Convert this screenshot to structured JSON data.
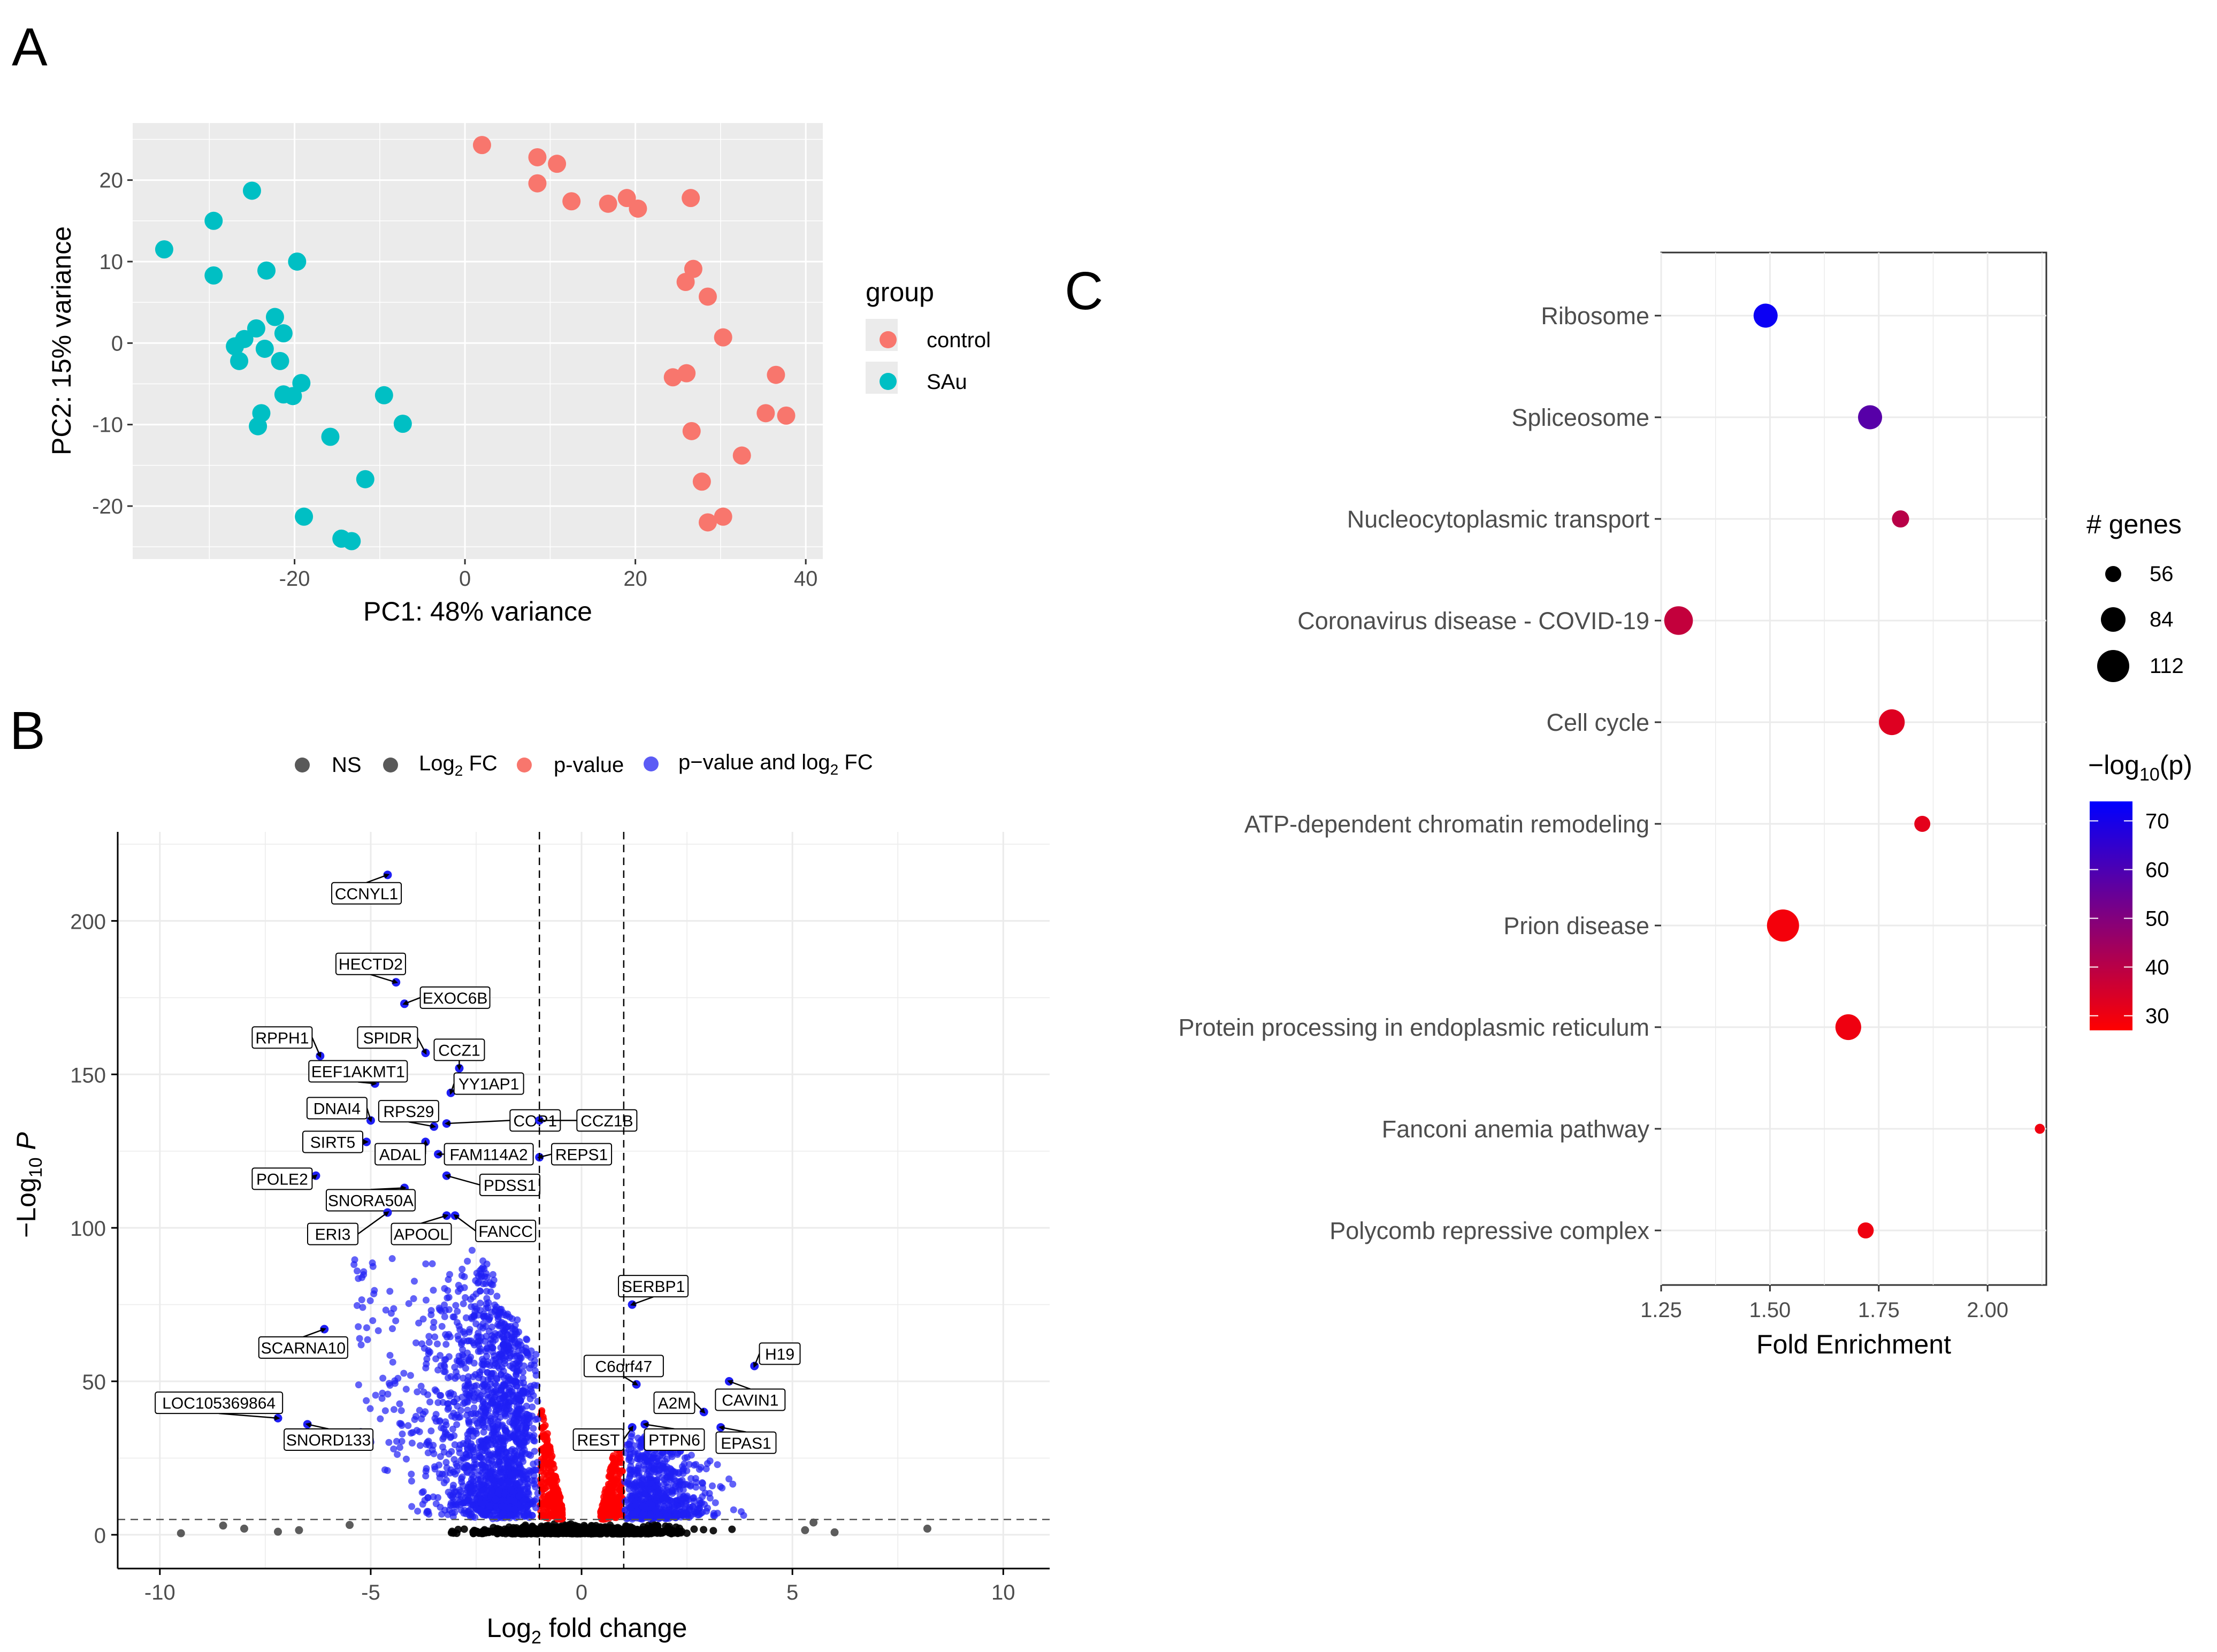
{
  "panel_letters": {
    "a": "A",
    "b": "B",
    "c": "C"
  },
  "chart_data": [
    {
      "id": "pca",
      "type": "scatter",
      "title": "",
      "xlabel": "PC1: 48% variance",
      "ylabel": "PC2: 15% variance",
      "xlim": [
        -39,
        42
      ],
      "ylim": [
        -26.5,
        27
      ],
      "xticks": [
        -20,
        0,
        20,
        40
      ],
      "xtick_labels": [
        "-20",
        "0",
        "20",
        "40"
      ],
      "yticks": [
        -20,
        -10,
        0,
        10,
        20
      ],
      "ytick_labels": [
        "-20",
        "-10",
        "0",
        "10",
        "20"
      ],
      "grid": true,
      "legend": {
        "title": "group",
        "position": "right"
      },
      "series": [
        {
          "name": "control",
          "color": "#F8766D",
          "points": [
            [
              2,
              24.3
            ],
            [
              8.5,
              22.8
            ],
            [
              10.8,
              22
            ],
            [
              8.5,
              19.6
            ],
            [
              12.5,
              17.4
            ],
            [
              16.8,
              17.1
            ],
            [
              19,
              17.8
            ],
            [
              20.3,
              16.5
            ],
            [
              26.5,
              17.8
            ],
            [
              26.8,
              9.1
            ],
            [
              25.9,
              7.5
            ],
            [
              28.5,
              5.7
            ],
            [
              30.3,
              0.7
            ],
            [
              36.5,
              -3.9
            ],
            [
              26,
              -3.7
            ],
            [
              24.4,
              -4.2
            ],
            [
              35.3,
              -8.6
            ],
            [
              37.7,
              -8.9
            ],
            [
              26.6,
              -10.8
            ],
            [
              32.5,
              -13.8
            ],
            [
              27.8,
              -17
            ],
            [
              30.3,
              -21.3
            ],
            [
              28.5,
              -22
            ]
          ]
        },
        {
          "name": "SAu",
          "color": "#00BFC4",
          "points": [
            [
              -25,
              18.7
            ],
            [
              -29.5,
              15
            ],
            [
              -35.3,
              11.5
            ],
            [
              -19.7,
              10
            ],
            [
              -23.3,
              8.9
            ],
            [
              -29.5,
              8.3
            ],
            [
              -22.3,
              3.2
            ],
            [
              -24.5,
              1.8
            ],
            [
              -21.3,
              1.2
            ],
            [
              -25.9,
              0.5
            ],
            [
              -27,
              -0.4
            ],
            [
              -23.5,
              -0.7
            ],
            [
              -26.5,
              -2.2
            ],
            [
              -21.7,
              -2.2
            ],
            [
              -19.2,
              -4.9
            ],
            [
              -21.3,
              -6.3
            ],
            [
              -20.2,
              -6.5
            ],
            [
              -9.5,
              -6.4
            ],
            [
              -7.3,
              -9.9
            ],
            [
              -23.9,
              -8.6
            ],
            [
              -24.3,
              -10.2
            ],
            [
              -15.8,
              -11.5
            ],
            [
              -11.7,
              -16.7
            ],
            [
              -18.9,
              -21.3
            ],
            [
              -14.5,
              -24
            ],
            [
              -13.3,
              -24.3
            ]
          ]
        }
      ]
    },
    {
      "id": "volcano",
      "type": "scatter",
      "title": "",
      "xlabel_main": "Log",
      "xlabel_sub": "2",
      "xlabel_rest": " fold change",
      "ylabel_main": "−Log",
      "ylabel_sub": "10",
      "ylabel_italic": " P",
      "xlim": [
        -11,
        11.1
      ],
      "ylim": [
        -11,
        229
      ],
      "xticks": [
        -10,
        -5,
        0,
        5,
        10
      ],
      "xtick_labels": [
        "-10",
        "-5",
        "0",
        "5",
        "10"
      ],
      "yticks": [
        0,
        50,
        100,
        150,
        200
      ],
      "ytick_labels": [
        "0",
        "50",
        "100",
        "150",
        "200"
      ],
      "fc_cutoff": [
        -1,
        1
      ],
      "p_cutoff": 5,
      "grid": true,
      "legend": {
        "position": "top",
        "items": [
          {
            "label": "NS",
            "color": "#595959"
          },
          {
            "label_main": "Log",
            "label_sub": "2",
            "label_rest": " FC",
            "color": "#595959"
          },
          {
            "label": "p-value",
            "color": "#F8766D"
          },
          {
            "label_main": "p−value and log",
            "label_sub": "2",
            "label_rest": " FC",
            "color": "#5B5BF5"
          }
        ]
      },
      "colors": {
        "ns": "#000000",
        "log2fc": "#404040",
        "pvalue": "#FF0000",
        "both": "#1F1FF5"
      },
      "outlier_points": [
        [
          -8.5,
          3
        ],
        [
          -8,
          2
        ],
        [
          -6.7,
          1.5
        ],
        [
          -7.2,
          1
        ],
        [
          5.5,
          4
        ],
        [
          5.3,
          1.5
        ],
        [
          8.2,
          2
        ],
        [
          -9.5,
          0.5
        ],
        [
          -5.5,
          3.2
        ],
        [
          6,
          0.8
        ]
      ],
      "labeled_genes": [
        {
          "gene": "CCNYL1",
          "x": -4.6,
          "y": 215
        },
        {
          "gene": "HECTD2",
          "x": -4.4,
          "y": 180
        },
        {
          "gene": "EXOC6B",
          "x": -4.2,
          "y": 173
        },
        {
          "gene": "RPPH1",
          "x": -6.2,
          "y": 156
        },
        {
          "gene": "SPIDR",
          "x": -3.7,
          "y": 157
        },
        {
          "gene": "CCZ1",
          "x": -2.9,
          "y": 152
        },
        {
          "gene": "EEF1AKMT1",
          "x": -4.9,
          "y": 147
        },
        {
          "gene": "YY1AP1",
          "x": -3.1,
          "y": 144
        },
        {
          "gene": "DNAI4",
          "x": -5,
          "y": 135
        },
        {
          "gene": "RPS29",
          "x": -3.5,
          "y": 133
        },
        {
          "gene": "COP1",
          "x": -3.2,
          "y": 134
        },
        {
          "gene": "CCZ1B",
          "x": -1,
          "y": 135
        },
        {
          "gene": "SIRT5",
          "x": -5.1,
          "y": 128
        },
        {
          "gene": "ADAL",
          "x": -3.7,
          "y": 128
        },
        {
          "gene": "FAM114A2",
          "x": -3.4,
          "y": 124
        },
        {
          "gene": "REPS1",
          "x": -1,
          "y": 123
        },
        {
          "gene": "POLE2",
          "x": -6.3,
          "y": 117
        },
        {
          "gene": "PDSS1",
          "x": -3.2,
          "y": 117
        },
        {
          "gene": "SNORA50A",
          "x": -4.2,
          "y": 113
        },
        {
          "gene": "ERI3",
          "x": -4.6,
          "y": 105
        },
        {
          "gene": "APOOL",
          "x": -3.2,
          "y": 104
        },
        {
          "gene": "FANCC",
          "x": -3,
          "y": 104
        },
        {
          "gene": "SERBP1",
          "x": 1.2,
          "y": 75
        },
        {
          "gene": "SCARNA10",
          "x": -6.1,
          "y": 67
        },
        {
          "gene": "H19",
          "x": 4.1,
          "y": 55
        },
        {
          "gene": "C6orf47",
          "x": 1.3,
          "y": 49
        },
        {
          "gene": "LOC105369864",
          "x": -7.2,
          "y": 38
        },
        {
          "gene": "A2M",
          "x": 2.9,
          "y": 40
        },
        {
          "gene": "CAVIN1",
          "x": 3.5,
          "y": 50
        },
        {
          "gene": "SNORD133",
          "x": -6.5,
          "y": 36
        },
        {
          "gene": "REST",
          "x": 1.2,
          "y": 35
        },
        {
          "gene": "PTPN6",
          "x": 1.5,
          "y": 36
        },
        {
          "gene": "EPAS1",
          "x": 3.3,
          "y": 35
        }
      ]
    },
    {
      "id": "enrichment",
      "type": "scatter",
      "title": "",
      "xlabel": "Fold Enrichment",
      "xlim": [
        1.25,
        2.135
      ],
      "xticks": [
        1.25,
        1.5,
        1.75,
        2.0
      ],
      "xtick_labels": [
        "1.25",
        "1.50",
        "1.75",
        "2.00"
      ],
      "grid": true,
      "categories": [
        "Ribosome",
        "Spliceosome",
        "Nucleocytoplasmic transport",
        "Coronavirus disease - COVID-19",
        "Cell cycle",
        "ATP-dependent chromatin remodeling",
        "Prion disease",
        "Protein processing in endoplasmic reticulum",
        "Fanconi anemia pathway",
        "Polycomb repressive complex"
      ],
      "fold_enrichment": [
        1.49,
        1.73,
        1.8,
        1.29,
        1.78,
        1.85,
        1.53,
        1.68,
        2.12,
        1.72
      ],
      "n_genes": [
        84,
        84,
        60,
        100,
        90,
        56,
        112,
        90,
        35,
        56
      ],
      "neg_log10_p": [
        72,
        58,
        40,
        38,
        33,
        32,
        29,
        30,
        30,
        30
      ],
      "size_legend": {
        "title": "# genes",
        "values": [
          56,
          84,
          112
        ],
        "labels": [
          "56",
          "84",
          "112"
        ]
      },
      "color_legend": {
        "title_main": "−log",
        "title_sub": "10",
        "title_rest": "(p)",
        "range": [
          27,
          74
        ],
        "ticks": [
          70,
          60,
          50,
          40,
          30
        ],
        "tick_labels": [
          "70",
          "60",
          "50",
          "40",
          "30"
        ],
        "low_color": "#FF0000",
        "high_color": "#0000FF"
      }
    }
  ]
}
